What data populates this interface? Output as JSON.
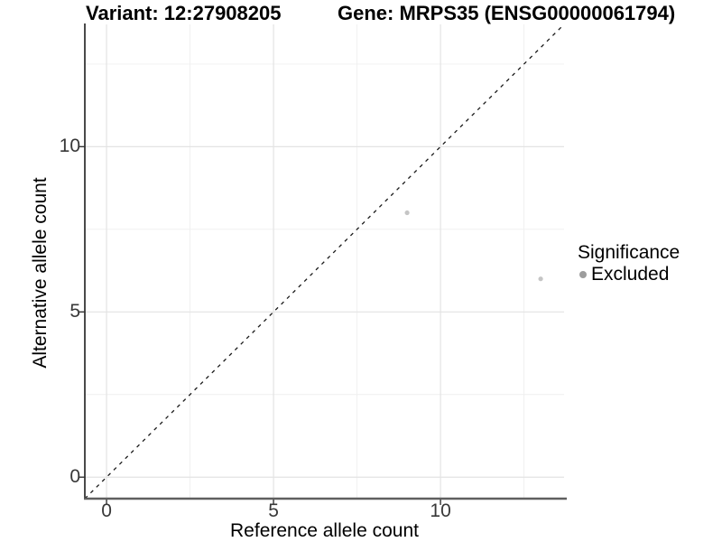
{
  "titles": {
    "variant": "Variant: 12:27908205",
    "gene": "Gene: MRPS35 (ENSG00000061794)"
  },
  "legend": {
    "title": "Significance",
    "entries": [
      {
        "label": "Excluded",
        "dot_color": "#9d9d9d"
      }
    ]
  },
  "chart_data": {
    "type": "scatter",
    "title": "Variant: 12:27908205 | Gene: MRPS35 (ENSG00000061794)",
    "xlabel": "Reference allele count",
    "ylabel": "Alternative allele count",
    "xlim": [
      -0.65,
      13.7
    ],
    "ylim": [
      -0.65,
      13.7
    ],
    "x_ticks": [
      0,
      5,
      10
    ],
    "y_ticks": [
      0,
      5,
      10
    ],
    "x_minor_ticks": [
      2.5,
      7.5,
      12.5
    ],
    "y_minor_ticks": [
      2.5,
      7.5,
      12.5
    ],
    "grid": true,
    "legend_position": "right",
    "series": [
      {
        "name": "Excluded",
        "points": [
          {
            "x": 9,
            "y": 8
          },
          {
            "x": 13,
            "y": 6
          }
        ],
        "color": "#c5c5c5",
        "point_radius": 2.6
      }
    ],
    "reference_line": {
      "type": "identity y=x",
      "style": "dashed",
      "color": "#1a1a1a"
    }
  },
  "colors": {
    "background": "#ffffff",
    "grid_major": "#e3e3e3",
    "grid_minor": "#efefef",
    "y_axis_line": "#1c1c1c",
    "x_axis_line": "#5f5f5f",
    "tick_mark": "#333333",
    "tick_label": "#383838"
  }
}
